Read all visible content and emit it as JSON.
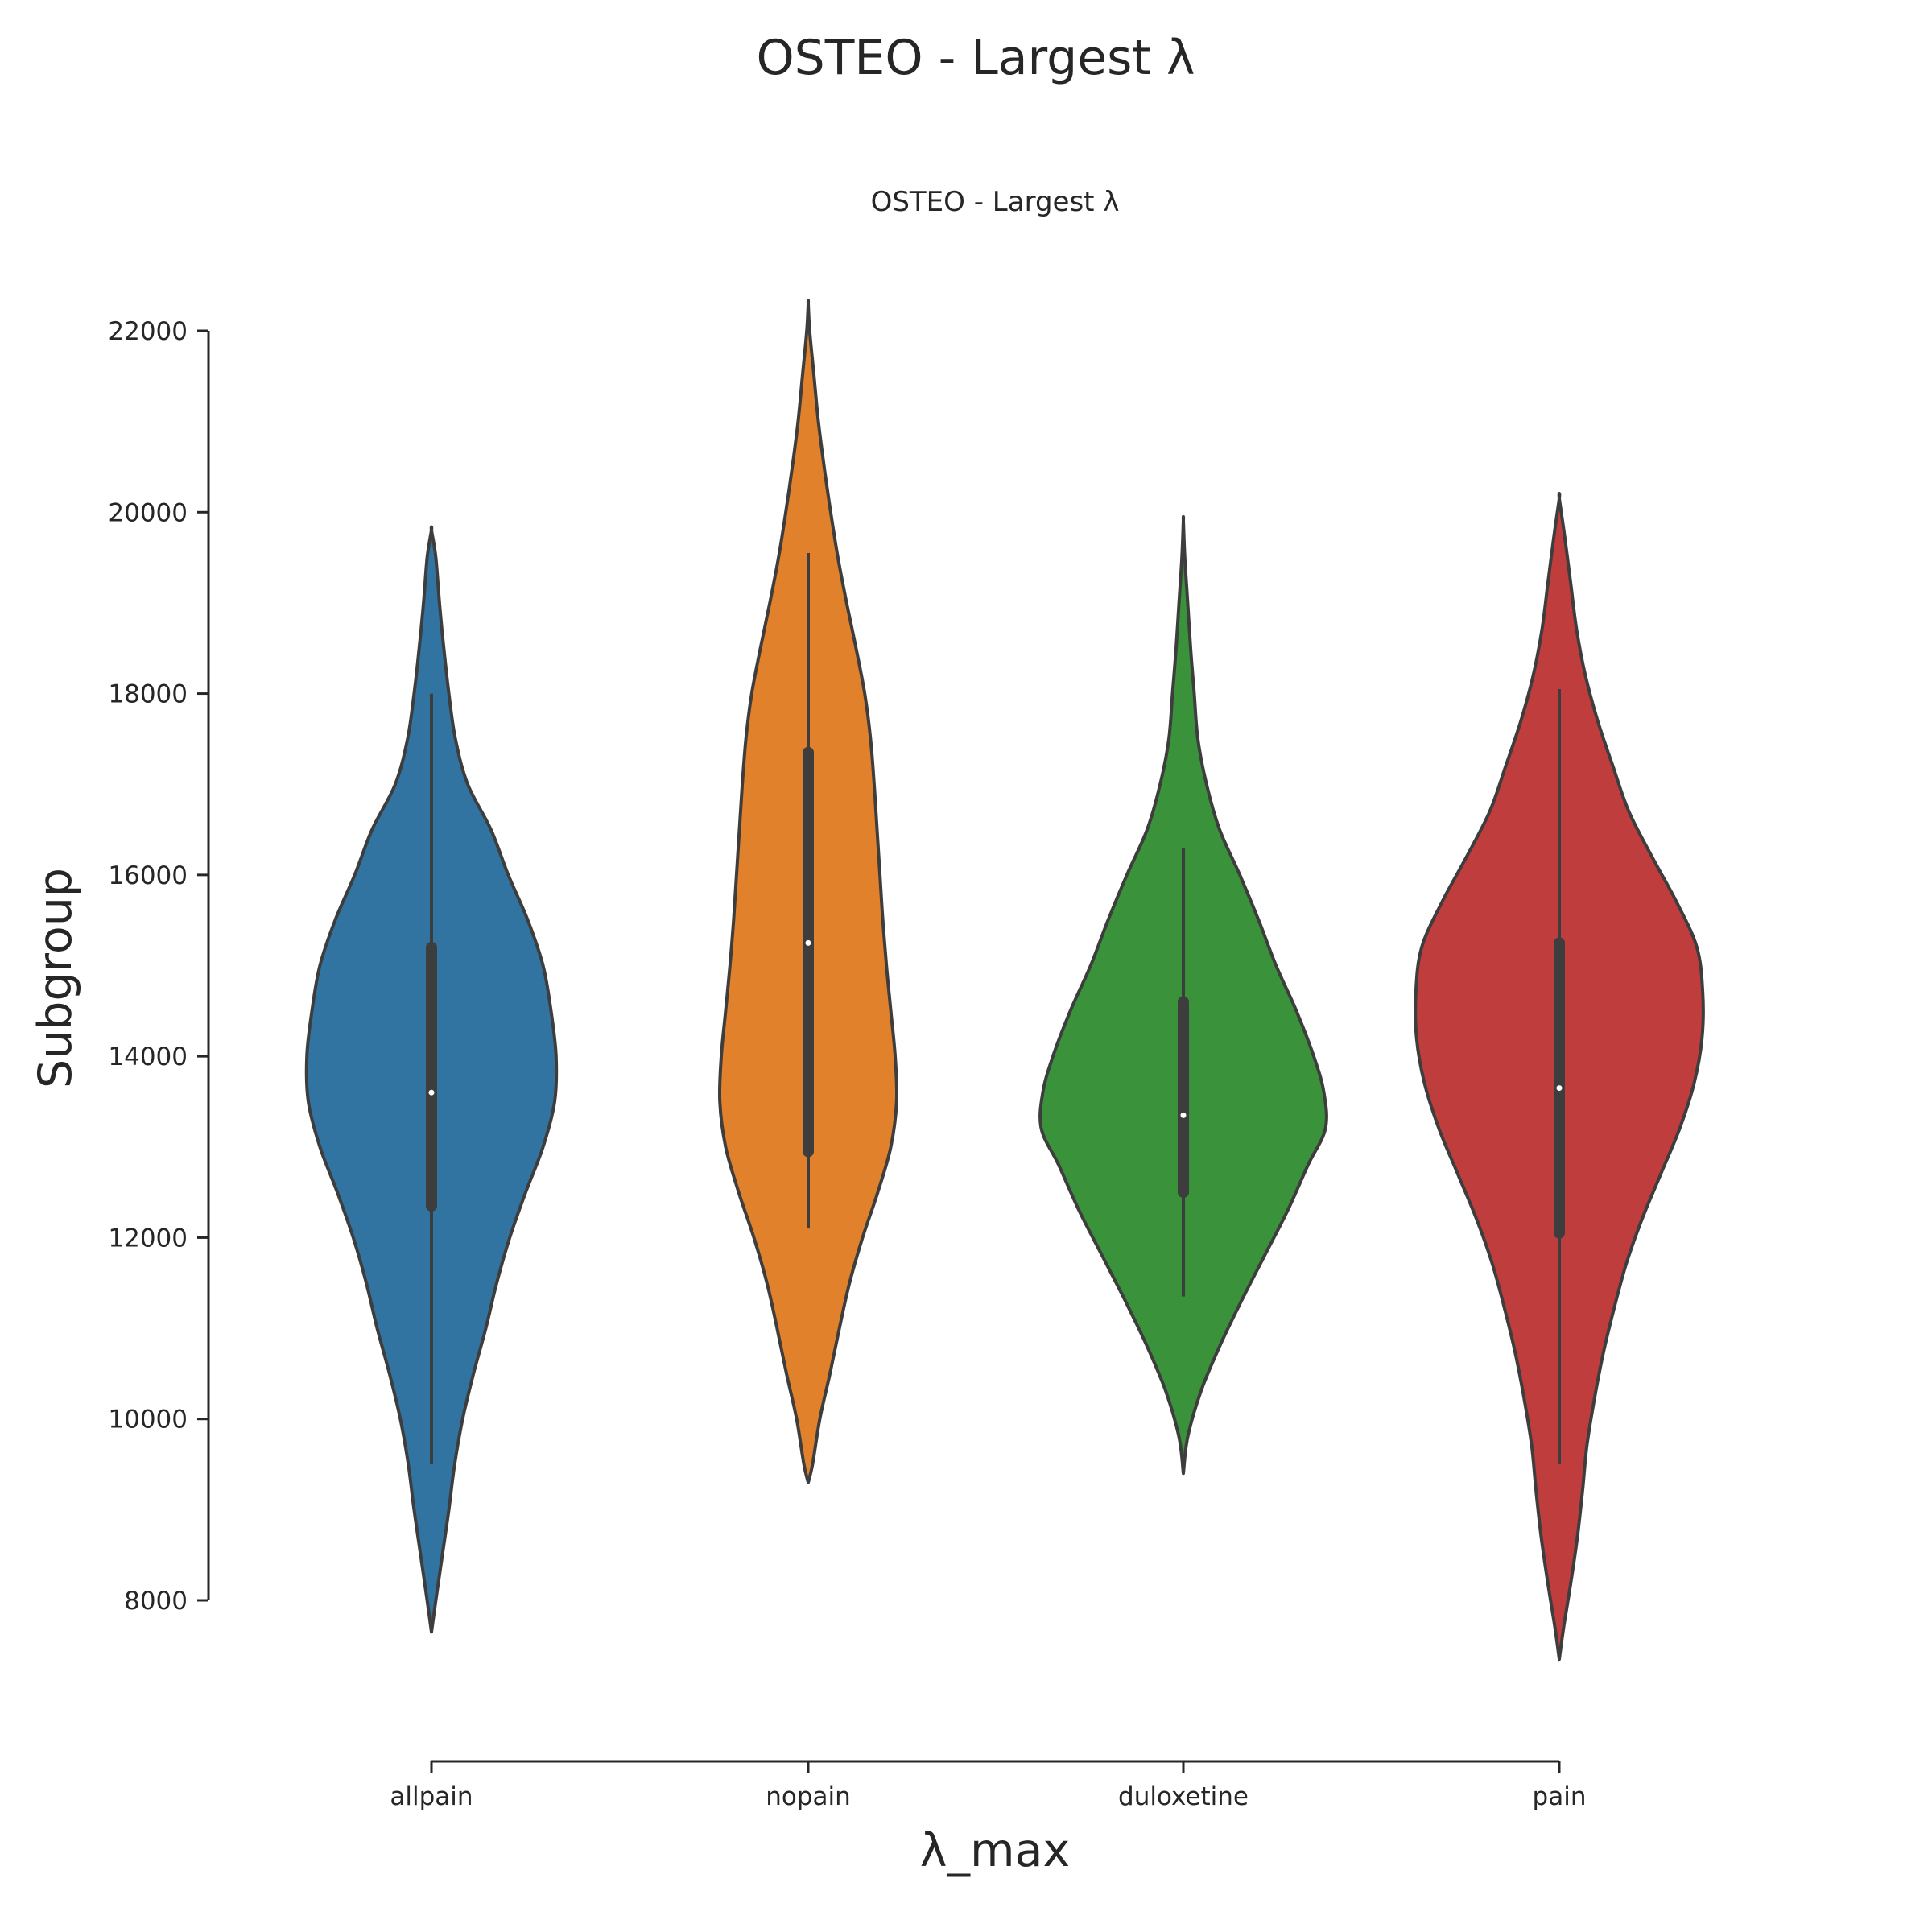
{
  "figure": {
    "suptitle": "OSTEO - Largest λ"
  },
  "chart_data": {
    "type": "violin",
    "title": "OSTEO - Largest λ",
    "xlabel": "λ_max",
    "ylabel": "Subgroup",
    "ylim": [
      6800,
      22400
    ],
    "yticks": [
      8000,
      10000,
      12000,
      14000,
      16000,
      18000,
      20000,
      22000
    ],
    "ytick_labels": [
      "8000",
      "10000",
      "12000",
      "14000",
      "16000",
      "18000",
      "20000",
      "22000"
    ],
    "categories": [
      "allpain",
      "nopain",
      "duloxetine",
      "pain"
    ],
    "grid": false,
    "legend": "none",
    "series": [
      {
        "category": "allpain",
        "color": "#3274a1",
        "median": 13600,
        "q1": 12350,
        "q3": 15200,
        "whisker_low": 9500,
        "whisker_high": 18000,
        "kde_min": 7650,
        "kde_max": 19800,
        "density": [
          [
            7650,
            0.0
          ],
          [
            8000,
            0.03
          ],
          [
            8500,
            0.075
          ],
          [
            9000,
            0.12
          ],
          [
            9500,
            0.16
          ],
          [
            10000,
            0.215
          ],
          [
            10500,
            0.29
          ],
          [
            11000,
            0.375
          ],
          [
            11500,
            0.45
          ],
          [
            12000,
            0.54
          ],
          [
            12500,
            0.65
          ],
          [
            13000,
            0.77
          ],
          [
            13500,
            0.85
          ],
          [
            14000,
            0.86
          ],
          [
            14500,
            0.825
          ],
          [
            15000,
            0.77
          ],
          [
            15500,
            0.665
          ],
          [
            16000,
            0.53
          ],
          [
            16500,
            0.41
          ],
          [
            17000,
            0.25
          ],
          [
            17500,
            0.165
          ],
          [
            18000,
            0.12
          ],
          [
            18500,
            0.085
          ],
          [
            19000,
            0.055
          ],
          [
            19500,
            0.03
          ],
          [
            19800,
            0.0
          ]
        ]
      },
      {
        "category": "nopain",
        "color": "#e1812c",
        "median": 15250,
        "q1": 12950,
        "q3": 17350,
        "whisker_low": 12100,
        "whisker_high": 19550,
        "kde_min": 9300,
        "kde_max": 22300,
        "density": [
          [
            9300,
            0.0
          ],
          [
            9500,
            0.03
          ],
          [
            10000,
            0.08
          ],
          [
            10500,
            0.15
          ],
          [
            11000,
            0.215
          ],
          [
            11500,
            0.285
          ],
          [
            12000,
            0.375
          ],
          [
            12500,
            0.48
          ],
          [
            13000,
            0.57
          ],
          [
            13500,
            0.61
          ],
          [
            14000,
            0.6
          ],
          [
            14500,
            0.57
          ],
          [
            15000,
            0.54
          ],
          [
            15500,
            0.515
          ],
          [
            16000,
            0.495
          ],
          [
            16500,
            0.475
          ],
          [
            17000,
            0.455
          ],
          [
            17500,
            0.43
          ],
          [
            18000,
            0.39
          ],
          [
            18500,
            0.33
          ],
          [
            19000,
            0.265
          ],
          [
            19500,
            0.205
          ],
          [
            20000,
            0.155
          ],
          [
            20500,
            0.11
          ],
          [
            21000,
            0.07
          ],
          [
            21500,
            0.04
          ],
          [
            22000,
            0.01
          ],
          [
            22300,
            0.0
          ]
        ]
      },
      {
        "category": "duloxetine",
        "color": "#3a923a",
        "median": 13350,
        "q1": 12500,
        "q3": 14600,
        "whisker_low": 11350,
        "whisker_high": 16300,
        "kde_min": 9400,
        "kde_max": 19900,
        "density": [
          [
            9400,
            0.0
          ],
          [
            9800,
            0.03
          ],
          [
            10300,
            0.12
          ],
          [
            10800,
            0.25
          ],
          [
            11300,
            0.4
          ],
          [
            11800,
            0.56
          ],
          [
            12300,
            0.72
          ],
          [
            12800,
            0.86
          ],
          [
            13200,
            0.98
          ],
          [
            13600,
            0.97
          ],
          [
            14000,
            0.9
          ],
          [
            14500,
            0.78
          ],
          [
            15000,
            0.64
          ],
          [
            15500,
            0.52
          ],
          [
            16000,
            0.39
          ],
          [
            16500,
            0.25
          ],
          [
            17000,
            0.16
          ],
          [
            17500,
            0.1
          ],
          [
            18000,
            0.075
          ],
          [
            18500,
            0.05
          ],
          [
            19000,
            0.03
          ],
          [
            19500,
            0.01
          ],
          [
            19900,
            0.0
          ]
        ]
      },
      {
        "category": "pain",
        "color": "#c03d3e",
        "median": 13650,
        "q1": 12050,
        "q3": 15250,
        "whisker_low": 9500,
        "whisker_high": 18050,
        "kde_min": 7350,
        "kde_max": 20150,
        "density": [
          [
            7350,
            0.0
          ],
          [
            7700,
            0.03
          ],
          [
            8200,
            0.08
          ],
          [
            8700,
            0.125
          ],
          [
            9200,
            0.16
          ],
          [
            9700,
            0.19
          ],
          [
            10200,
            0.24
          ],
          [
            10700,
            0.3
          ],
          [
            11200,
            0.375
          ],
          [
            11700,
            0.46
          ],
          [
            12200,
            0.57
          ],
          [
            12700,
            0.7
          ],
          [
            13200,
            0.83
          ],
          [
            13700,
            0.93
          ],
          [
            14200,
            0.985
          ],
          [
            14700,
            0.99
          ],
          [
            15200,
            0.95
          ],
          [
            15700,
            0.81
          ],
          [
            16200,
            0.64
          ],
          [
            16700,
            0.48
          ],
          [
            17200,
            0.37
          ],
          [
            17700,
            0.265
          ],
          [
            18200,
            0.18
          ],
          [
            18700,
            0.12
          ],
          [
            19200,
            0.08
          ],
          [
            19700,
            0.04
          ],
          [
            20150,
            0.0
          ]
        ]
      }
    ]
  }
}
